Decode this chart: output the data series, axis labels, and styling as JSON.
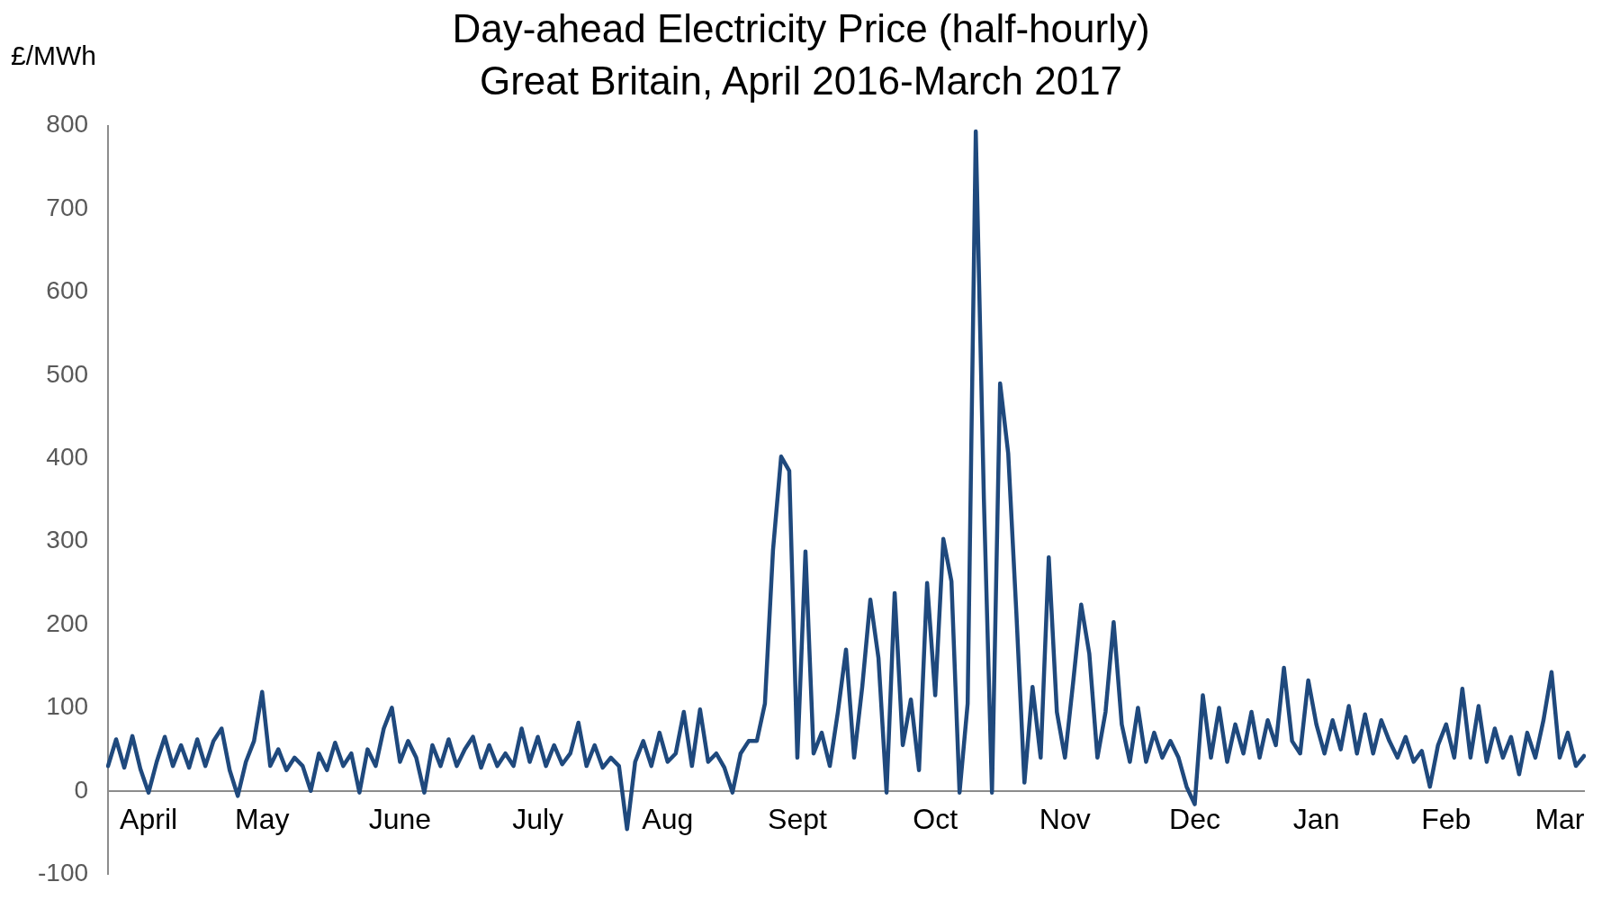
{
  "chart_data": {
    "type": "line",
    "title": "Day-ahead Electricity Price (half-hourly)",
    "subtitle": "Great Britain, April 2016-March 2017",
    "ylabel": "£/MWh",
    "categories": [
      null,
      null,
      null,
      null,
      null,
      "April",
      null,
      null,
      null,
      null,
      null,
      null,
      null,
      null,
      null,
      null,
      null,
      null,
      null,
      "May",
      null,
      null,
      null,
      null,
      null,
      null,
      null,
      null,
      null,
      null,
      null,
      null,
      null,
      null,
      null,
      null,
      "June",
      null,
      null,
      null,
      null,
      null,
      null,
      null,
      null,
      null,
      null,
      null,
      null,
      null,
      null,
      null,
      null,
      "July",
      null,
      null,
      null,
      null,
      null,
      null,
      null,
      null,
      null,
      null,
      null,
      null,
      null,
      null,
      null,
      "Aug",
      null,
      null,
      null,
      null,
      null,
      null,
      null,
      null,
      null,
      null,
      null,
      null,
      null,
      null,
      null,
      "Sept",
      null,
      null,
      null,
      null,
      null,
      null,
      null,
      null,
      null,
      null,
      null,
      null,
      null,
      null,
      null,
      null,
      "Oct",
      null,
      null,
      null,
      null,
      null,
      null,
      null,
      null,
      null,
      null,
      null,
      null,
      null,
      null,
      null,
      "Nov",
      null,
      null,
      null,
      null,
      null,
      null,
      null,
      null,
      null,
      null,
      null,
      null,
      null,
      null,
      null,
      "Dec",
      null,
      null,
      null,
      null,
      null,
      null,
      null,
      null,
      null,
      null,
      null,
      null,
      null,
      null,
      "Jan",
      null,
      null,
      null,
      null,
      null,
      null,
      null,
      null,
      null,
      null,
      null,
      null,
      null,
      null,
      null,
      "Feb",
      null,
      null,
      null,
      null,
      null,
      null,
      null,
      null,
      null,
      null,
      null,
      null,
      null,
      "Mar",
      null,
      null,
      null
    ],
    "series": [
      {
        "color": "#1f497d",
        "values": [
          30,
          62,
          28,
          66,
          26,
          -2,
          35,
          65,
          30,
          55,
          28,
          62,
          30,
          60,
          75,
          25,
          -6,
          35,
          60,
          119,
          30,
          50,
          25,
          40,
          30,
          0,
          45,
          25,
          58,
          30,
          45,
          -2,
          50,
          30,
          75,
          100,
          35,
          60,
          40,
          -2,
          55,
          30,
          62,
          30,
          50,
          65,
          28,
          55,
          30,
          45,
          30,
          75,
          35,
          65,
          30,
          55,
          32,
          45,
          82,
          30,
          55,
          28,
          40,
          30,
          -46,
          35,
          60,
          30,
          70,
          35,
          45,
          95,
          30,
          98,
          35,
          45,
          28,
          -2,
          45,
          60,
          60,
          105,
          290,
          402,
          385,
          40,
          288,
          45,
          70,
          30,
          95,
          170,
          40,
          125,
          230,
          160,
          -2,
          238,
          55,
          110,
          25,
          250,
          115,
          303,
          252,
          -2,
          105,
          793,
          351,
          -2,
          490,
          406,
          215,
          10,
          125,
          40,
          281,
          95,
          40,
          130,
          224,
          165,
          40,
          95,
          203,
          80,
          35,
          100,
          35,
          70,
          40,
          60,
          40,
          5,
          -16,
          115,
          40,
          100,
          35,
          80,
          45,
          95,
          40,
          85,
          55,
          148,
          60,
          45,
          133,
          80,
          45,
          85,
          50,
          102,
          45,
          92,
          45,
          85,
          60,
          40,
          65,
          35,
          48,
          5,
          55,
          80,
          40,
          123,
          40,
          102,
          35,
          75,
          40,
          65,
          20,
          70,
          40,
          85,
          143,
          40,
          70,
          30,
          42
        ]
      }
    ],
    "ylim": [
      -100,
      800
    ],
    "yticks": [
      -100,
      0,
      100,
      200,
      300,
      400,
      500,
      600,
      700,
      800
    ],
    "grid": false,
    "legend": false
  }
}
